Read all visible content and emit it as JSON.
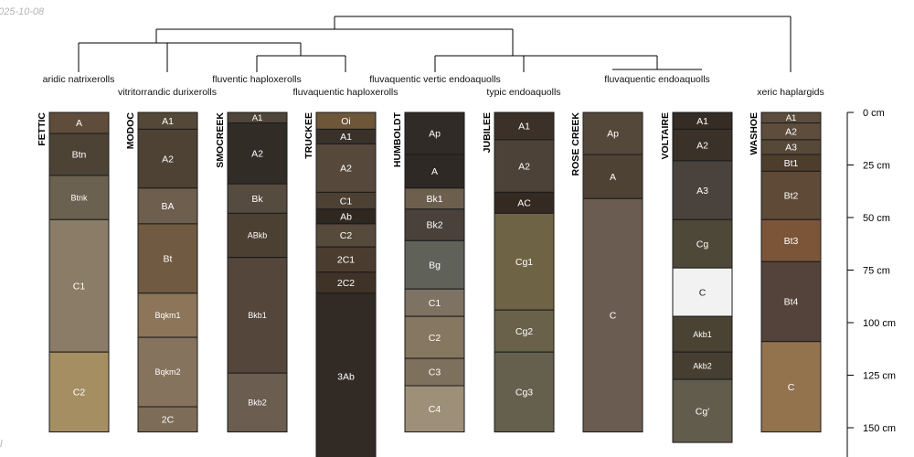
{
  "date_stamp": "025-10-08",
  "corner_mark": "l",
  "taxa": [
    "aridic natrixerolls",
    "vitritorrandic durixerolls",
    "fluventic haploxerolls",
    "fluvaquentic haploxerolls",
    "fluvaquentic vertic endoaquolls",
    "typic endoaquolls",
    "fluvaquentic endoaquolls",
    "xeric haplargids"
  ],
  "depth_axis": {
    "unit": "cm",
    "ticks": [
      "0 cm",
      "25 cm",
      "50 cm",
      "75 cm",
      "100 cm",
      "125 cm",
      "150 cm"
    ]
  },
  "profiles": [
    {
      "name": "FETTIC",
      "horizons": [
        {
          "label": "A",
          "top": 0,
          "bottom": 10,
          "color": "#5f4c3a"
        },
        {
          "label": "Btn",
          "top": 10,
          "bottom": 30,
          "color": "#4d4334"
        },
        {
          "label": "Btnk",
          "top": 30,
          "bottom": 51,
          "color": "#6b6150"
        },
        {
          "label": "C1",
          "top": 51,
          "bottom": 114,
          "color": "#8a7c66"
        },
        {
          "label": "C2",
          "top": 114,
          "bottom": 152,
          "color": "#a58e62"
        }
      ]
    },
    {
      "name": "MODOC",
      "horizons": [
        {
          "label": "A1",
          "top": 0,
          "bottom": 8,
          "color": "#544838"
        },
        {
          "label": "A2",
          "top": 8,
          "bottom": 36,
          "color": "#4e4234"
        },
        {
          "label": "BA",
          "top": 36,
          "bottom": 53,
          "color": "#6d5e4d"
        },
        {
          "label": "Bt",
          "top": 53,
          "bottom": 86,
          "color": "#705a41"
        },
        {
          "label": "Bqkm1",
          "top": 86,
          "bottom": 107,
          "color": "#8c7558"
        },
        {
          "label": "Bqkm2",
          "top": 107,
          "bottom": 140,
          "color": "#86735d"
        },
        {
          "label": "2C",
          "top": 140,
          "bottom": 152,
          "color": "#7d6c57"
        }
      ]
    },
    {
      "name": "SMOCREEK",
      "horizons": [
        {
          "label": "A1",
          "top": 0,
          "bottom": 5,
          "color": "#4f453a"
        },
        {
          "label": "A2",
          "top": 5,
          "bottom": 34,
          "color": "#322c26"
        },
        {
          "label": "Bk",
          "top": 34,
          "bottom": 48,
          "color": "#564b3f"
        },
        {
          "label": "ABkb",
          "top": 48,
          "bottom": 69,
          "color": "#4c4033"
        },
        {
          "label": "Bkb1",
          "top": 69,
          "bottom": 124,
          "color": "#54463a"
        },
        {
          "label": "Bkb2",
          "top": 124,
          "bottom": 152,
          "color": "#6b5d4f"
        }
      ]
    },
    {
      "name": "TRUCKEE",
      "horizons": [
        {
          "label": "Oi",
          "top": 0,
          "bottom": 8,
          "color": "#6e5639"
        },
        {
          "label": "A1",
          "top": 8,
          "bottom": 15,
          "color": "#3a312b"
        },
        {
          "label": "A2",
          "top": 15,
          "bottom": 38,
          "color": "#56493c"
        },
        {
          "label": "C1",
          "top": 38,
          "bottom": 46,
          "color": "#4d4134"
        },
        {
          "label": "Ab",
          "top": 46,
          "bottom": 53,
          "color": "#2f2821"
        },
        {
          "label": "C2",
          "top": 53,
          "bottom": 64,
          "color": "#564a3d"
        },
        {
          "label": "2C1",
          "top": 64,
          "bottom": 76,
          "color": "#4a3d30"
        },
        {
          "label": "2C2",
          "top": 76,
          "bottom": 86,
          "color": "#3f3227"
        },
        {
          "label": "3Ab",
          "top": 86,
          "bottom": 165,
          "color": "#322b25"
        }
      ]
    },
    {
      "name": "HUMBOLDT",
      "horizons": [
        {
          "label": "Ap",
          "top": 0,
          "bottom": 20,
          "color": "#312b27"
        },
        {
          "label": "A",
          "top": 20,
          "bottom": 36,
          "color": "#2e2924"
        },
        {
          "label": "Bk1",
          "top": 36,
          "bottom": 46,
          "color": "#6c5f4e"
        },
        {
          "label": "Bk2",
          "top": 46,
          "bottom": 61,
          "color": "#4a413a"
        },
        {
          "label": "Bg",
          "top": 61,
          "bottom": 84,
          "color": "#60625a"
        },
        {
          "label": "C1",
          "top": 84,
          "bottom": 97,
          "color": "#7e7263"
        },
        {
          "label": "C2",
          "top": 97,
          "bottom": 117,
          "color": "#857760"
        },
        {
          "label": "C3",
          "top": 117,
          "bottom": 130,
          "color": "#7d705d"
        },
        {
          "label": "C4",
          "top": 130,
          "bottom": 152,
          "color": "#9e9078"
        }
      ]
    },
    {
      "name": "JUBILEE",
      "horizons": [
        {
          "label": "A1",
          "top": 0,
          "bottom": 13,
          "color": "#3b3129"
        },
        {
          "label": "A2",
          "top": 13,
          "bottom": 38,
          "color": "#4c4238"
        },
        {
          "label": "AC",
          "top": 38,
          "bottom": 48,
          "color": "#342a22"
        },
        {
          "label": "Cg1",
          "top": 48,
          "bottom": 94,
          "color": "#6e6445"
        },
        {
          "label": "Cg2",
          "top": 94,
          "bottom": 114,
          "color": "#69614a"
        },
        {
          "label": "Cg3",
          "top": 114,
          "bottom": 152,
          "color": "#65604d"
        }
      ]
    },
    {
      "name": "ROSE CREEK",
      "horizons": [
        {
          "label": "Ap",
          "top": 0,
          "bottom": 20,
          "color": "#54483b"
        },
        {
          "label": "A",
          "top": 20,
          "bottom": 41,
          "color": "#4d4234"
        },
        {
          "label": "C",
          "top": 41,
          "bottom": 152,
          "color": "#6b5c51"
        }
      ]
    },
    {
      "name": "VOLTAIRE",
      "horizons": [
        {
          "label": "A1",
          "top": 0,
          "bottom": 8,
          "color": "#342c25"
        },
        {
          "label": "A2",
          "top": 8,
          "bottom": 23,
          "color": "#3a3129"
        },
        {
          "label": "A3",
          "top": 23,
          "bottom": 51,
          "color": "#4a433d"
        },
        {
          "label": "Cg",
          "top": 51,
          "bottom": 74,
          "color": "#4e4838"
        },
        {
          "label": "C",
          "top": 74,
          "bottom": 97,
          "color": "#f2f2f2"
        },
        {
          "label": "Akb1",
          "top": 97,
          "bottom": 114,
          "color": "#4a4233"
        },
        {
          "label": "Akb2",
          "top": 114,
          "bottom": 127,
          "color": "#463e31"
        },
        {
          "label": "Cg'",
          "top": 127,
          "bottom": 157,
          "color": "#625c4c"
        }
      ]
    },
    {
      "name": "WASHOE",
      "horizons": [
        {
          "label": "A1",
          "top": 0,
          "bottom": 5,
          "color": "#5b4c3d"
        },
        {
          "label": "A2",
          "top": 5,
          "bottom": 13,
          "color": "#5e4d3c"
        },
        {
          "label": "A3",
          "top": 13,
          "bottom": 20,
          "color": "#574838"
        },
        {
          "label": "Bt1",
          "top": 20,
          "bottom": 28,
          "color": "#4c3d2d"
        },
        {
          "label": "Bt2",
          "top": 28,
          "bottom": 51,
          "color": "#5e4a36"
        },
        {
          "label": "Bt3",
          "top": 51,
          "bottom": 71,
          "color": "#7c5538"
        },
        {
          "label": "Bt4",
          "top": 71,
          "bottom": 109,
          "color": "#54433a"
        },
        {
          "label": "C",
          "top": 109,
          "bottom": 152,
          "color": "#92734e"
        }
      ]
    }
  ]
}
